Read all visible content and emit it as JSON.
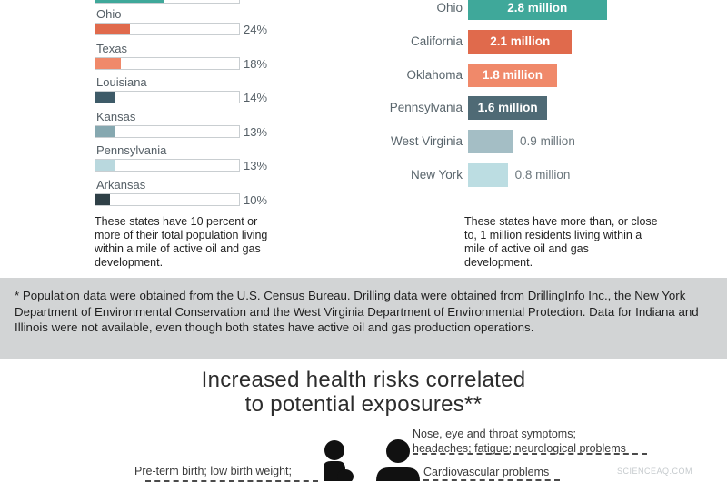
{
  "left_panel": {
    "caption": "These states have 10 percent or more of their total population living within a mile of active oil and gas development."
  },
  "right_panel": {
    "caption": "These states have more than, or close to, 1 million residents living within a mile of active oil and gas development."
  },
  "chart_data": [
    {
      "type": "bar",
      "orientation": "horizontal",
      "title": "",
      "unit": "%",
      "categories": [
        "Ohio",
        "Texas",
        "Louisiana",
        "Kansas",
        "Pennsylvania",
        "Arkansas"
      ],
      "values": [
        24,
        18,
        14,
        13,
        13,
        10
      ],
      "value_labels": [
        "24%",
        "18%",
        "14%",
        "13%",
        "13%",
        "10%"
      ],
      "colors": [
        "#e06a4c",
        "#f0896a",
        "#3e5b68",
        "#86a8b0",
        "#b9d8de",
        "#2f4047"
      ],
      "xlim": [
        0,
        100
      ],
      "partial_row_at_top": {
        "fill": "#3fa89a",
        "value_fraction": 0.48
      },
      "grid": false
    },
    {
      "type": "bar",
      "orientation": "horizontal",
      "title": "",
      "unit": "million",
      "categories": [
        "Ohio",
        "California",
        "Oklahoma",
        "Pennsylvania",
        "West Virginia",
        "New York"
      ],
      "values": [
        2.8,
        2.1,
        1.8,
        1.6,
        0.9,
        0.8
      ],
      "value_labels": [
        "2.8 million",
        "2.1 million",
        "1.8 million",
        "1.6 million",
        "0.9 million",
        "0.8 million"
      ],
      "label_inside": [
        true,
        true,
        true,
        true,
        false,
        false
      ],
      "colors": [
        "#3fa89a",
        "#e06a4c",
        "#f0896a",
        "#4f6a75",
        "#a4bec5",
        "#bcdde2"
      ],
      "grid": false
    }
  ],
  "footnote": "* Population data were obtained from the U.S. Census Bureau. Drilling data were obtained from DrillingInfo Inc., the New York Department of Environmental Conservation and the West Virginia Department of Environmental Protection. Data for Indiana and Illinois were not available, even though both states have active oil and gas production operations.",
  "heading": {
    "line1": "Increased health risks correlated",
    "line2": "to potential exposures**"
  },
  "health_risks": {
    "adult_risk_1": "Nose, eye and throat symptoms; headaches; fatigue; neurological problems",
    "adult_risk_1_line1": "Nose, eye and throat symptoms;",
    "adult_risk_1_line2": "headaches; fatigue; neurological problems",
    "adult_risk_2": "Cardiovascular problems",
    "infant_risk": "Pre-term birth; low birth weight;"
  },
  "watermark": "SCIENCEAQ.COM",
  "colors": {
    "ink": "#2f2f2f",
    "band": "#d2d4d5",
    "track_border": "#c9ced1"
  }
}
